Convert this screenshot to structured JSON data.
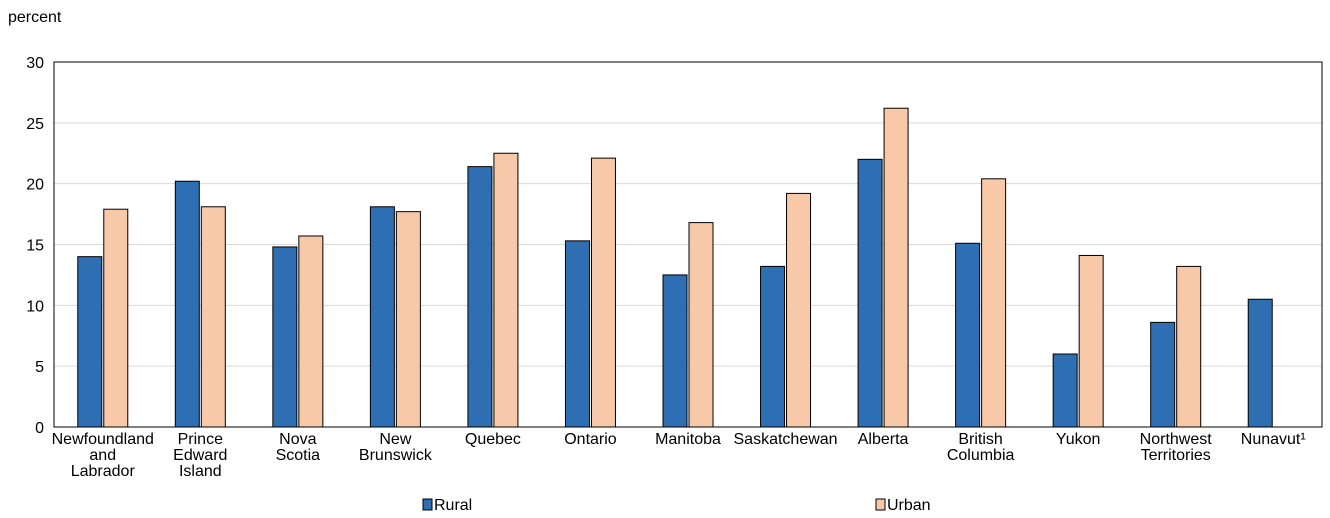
{
  "chart_data": {
    "type": "bar",
    "ylabel": "percent",
    "ylim": [
      0,
      30
    ],
    "yticks": [
      0,
      5,
      10,
      15,
      20,
      25,
      30
    ],
    "grid": true,
    "legend_position": "bottom",
    "categories": [
      [
        "Newfoundland",
        "and",
        "Labrador"
      ],
      [
        "Prince",
        "Edward",
        "Island"
      ],
      [
        "Nova",
        "Scotia"
      ],
      [
        "New",
        "Brunswick"
      ],
      [
        "Quebec"
      ],
      [
        "Ontario"
      ],
      [
        "Manitoba"
      ],
      [
        "Saskatchewan"
      ],
      [
        "Alberta"
      ],
      [
        "British",
        "Columbia"
      ],
      [
        "Yukon"
      ],
      [
        "Northwest",
        "Territories"
      ],
      [
        "Nunavut¹"
      ]
    ],
    "series": [
      {
        "name": "Rural",
        "color": "#2e6fb3",
        "values": [
          14.0,
          20.2,
          14.8,
          18.1,
          21.4,
          15.3,
          12.5,
          13.2,
          22.0,
          15.1,
          6.0,
          8.6,
          10.5
        ]
      },
      {
        "name": "Urban",
        "color": "#f7c9a9",
        "values": [
          17.9,
          18.1,
          15.7,
          17.7,
          22.5,
          22.1,
          16.8,
          19.2,
          26.2,
          20.4,
          14.1,
          13.2,
          null
        ]
      }
    ]
  }
}
